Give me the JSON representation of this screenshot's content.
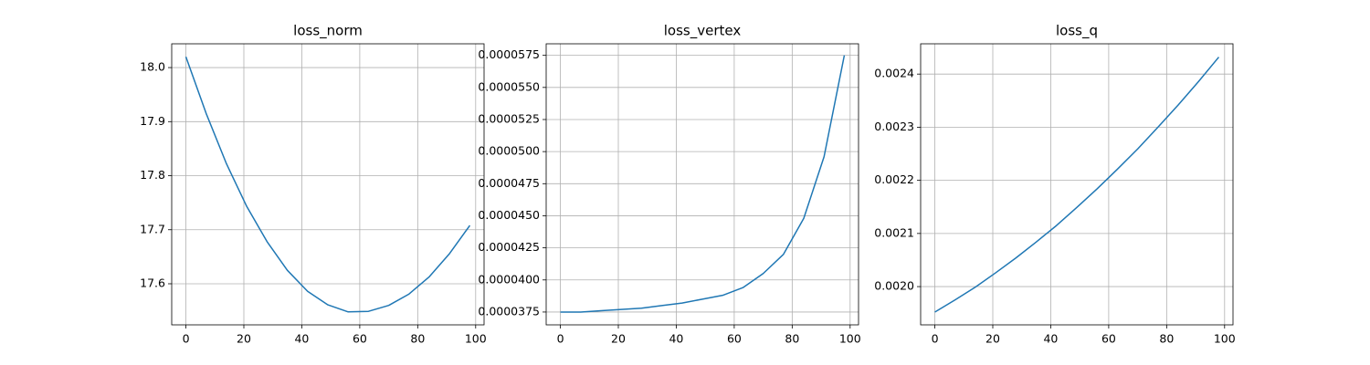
{
  "chart_data": [
    {
      "type": "line",
      "title": "loss_norm",
      "x": [
        0,
        7,
        14,
        21,
        28,
        35,
        42,
        49,
        56,
        63,
        70,
        77,
        84,
        91,
        98
      ],
      "series": [
        {
          "name": "loss_norm",
          "color": "#1f77b4",
          "values": [
            18.02,
            17.915,
            17.822,
            17.743,
            17.678,
            17.625,
            17.586,
            17.561,
            17.548,
            17.549,
            17.56,
            17.581,
            17.613,
            17.656,
            17.708
          ]
        }
      ],
      "xlim": [
        -4.9,
        102.9
      ],
      "xticks": [
        0,
        20,
        40,
        60,
        80,
        100
      ],
      "ylim": [
        17.524,
        18.044
      ],
      "yticks": [
        17.6,
        17.7,
        17.8,
        17.9,
        {
          "value": 18.0,
          "label": "18.0"
        }
      ],
      "grid": true
    },
    {
      "type": "line",
      "title": "loss_vertex",
      "x": [
        0,
        7,
        14,
        21,
        28,
        35,
        42,
        49,
        56,
        63,
        70,
        77,
        84,
        91,
        98
      ],
      "series": [
        {
          "name": "loss_vertex",
          "color": "#1f77b4",
          "values": [
            3.75e-05,
            3.75e-05,
            3.76e-05,
            3.77e-05,
            3.78e-05,
            3.8e-05,
            3.82e-05,
            3.85e-05,
            3.88e-05,
            3.94e-05,
            4.05e-05,
            4.2e-05,
            4.48e-05,
            4.96e-05,
            5.75e-05
          ]
        }
      ],
      "xlim": [
        -4.9,
        102.9
      ],
      "xticks": [
        0,
        20,
        40,
        60,
        80,
        100
      ],
      "ylim": [
        3.65e-05,
        5.84e-05
      ],
      "yticks": [
        3.75e-05,
        {
          "value": 4e-05,
          "label": "0.0000400"
        },
        4.25e-05,
        {
          "value": 4.5e-05,
          "label": "0.0000450"
        },
        4.75e-05,
        {
          "value": 5e-05,
          "label": "0.0000500"
        },
        5.25e-05,
        {
          "value": 5.5e-05,
          "label": "0.0000550"
        },
        5.75e-05
      ],
      "grid": true
    },
    {
      "type": "line",
      "title": "loss_q",
      "x": [
        0,
        7,
        14,
        21,
        28,
        35,
        42,
        49,
        56,
        63,
        70,
        77,
        84,
        91,
        98
      ],
      "series": [
        {
          "name": "loss_q",
          "color": "#1f77b4",
          "values": [
            0.001952,
            0.001975,
            0.001999,
            0.002026,
            0.002054,
            0.002084,
            0.002115,
            0.002149,
            0.002184,
            0.002221,
            0.002259,
            0.0023,
            0.002342,
            0.002386,
            0.002432
          ]
        }
      ],
      "xlim": [
        -4.9,
        102.9
      ],
      "xticks": [
        0,
        20,
        40,
        60,
        80,
        100
      ],
      "ylim": [
        0.001928,
        0.002457
      ],
      "yticks": [
        {
          "value": 0.002,
          "label": "0.0020"
        },
        {
          "value": 0.0021,
          "label": "0.0021"
        },
        {
          "value": 0.0022,
          "label": "0.0022"
        },
        {
          "value": 0.0023,
          "label": "0.0023"
        },
        {
          "value": 0.0024,
          "label": "0.0024"
        }
      ],
      "grid": true
    }
  ]
}
